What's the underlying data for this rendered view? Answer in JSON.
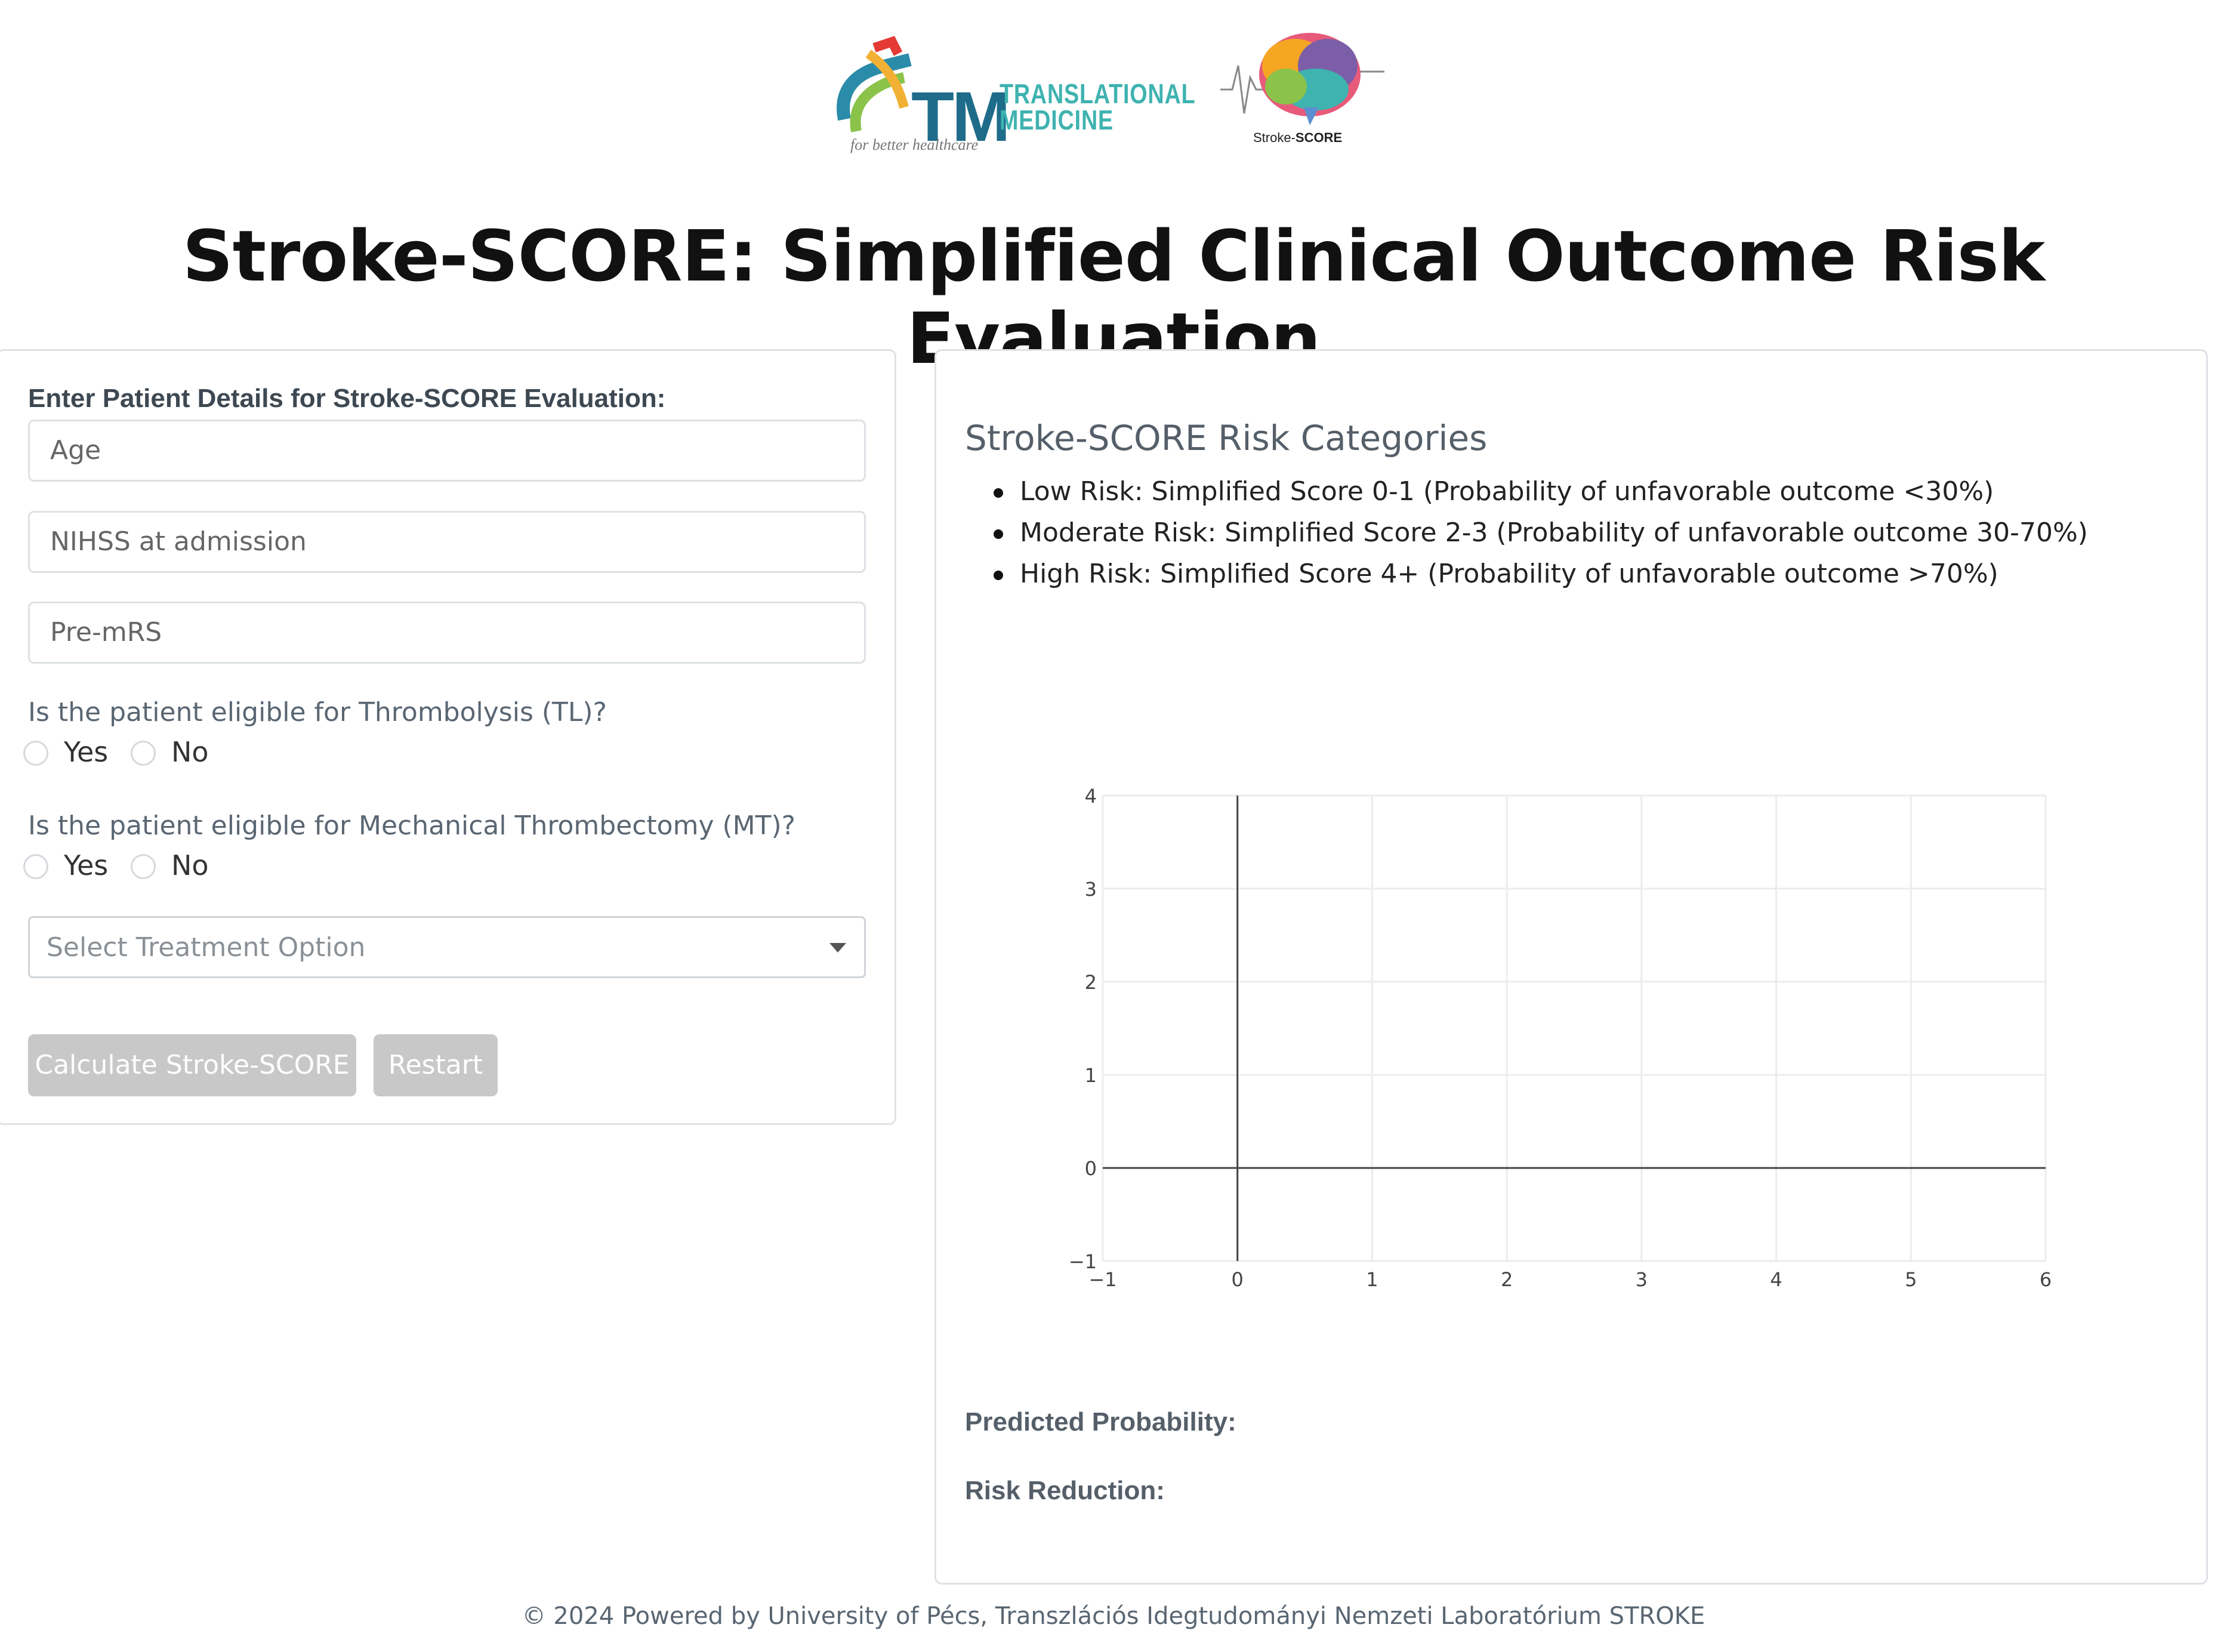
{
  "header": {
    "tm_logo": {
      "letters": "TM",
      "line1": "TRANSLATIONAL",
      "line2": "MEDICINE",
      "tagline": "for better healthcare"
    },
    "brain_logo": {
      "caption_prefix": "Stroke-",
      "caption_bold": "SCORE"
    },
    "title": "Stroke-SCORE: Simplified Clinical Outcome Risk Evaluation"
  },
  "form": {
    "heading": "Enter Patient Details for Stroke-SCORE Evaluation:",
    "age_placeholder": "Age",
    "nihss_placeholder": "NIHSS at admission",
    "premrs_placeholder": "Pre-mRS",
    "tl_question": "Is the patient eligible for Thrombolysis (TL)?",
    "mt_question": "Is the patient eligible for Mechanical Thrombectomy (MT)?",
    "yes_label": "Yes",
    "no_label": "No",
    "treatment_placeholder": "Select Treatment Option",
    "calculate_label": "Calculate Stroke-SCORE",
    "restart_label": "Restart"
  },
  "results": {
    "categories_title": "Stroke-SCORE Risk Categories",
    "categories": [
      "Low Risk: Simplified Score 0-1 (Probability of unfavorable outcome <30%)",
      "Moderate Risk: Simplified Score 2-3 (Probability of unfavorable outcome 30-70%)",
      "High Risk: Simplified Score 4+ (Probability of unfavorable outcome >70%)"
    ],
    "predicted_probability_label": "Predicted Probability:",
    "risk_reduction_label": "Risk Reduction:"
  },
  "chart_data": {
    "type": "scatter",
    "series": [],
    "xlim": [
      -1,
      6
    ],
    "ylim": [
      -1,
      4
    ],
    "x_ticks": [
      "−1",
      "0",
      "1",
      "2",
      "3",
      "4",
      "5",
      "6"
    ],
    "y_ticks": [
      "−1",
      "0",
      "1",
      "2",
      "3",
      "4"
    ],
    "grid": true
  },
  "footer": {
    "text": "© 2024 Powered by University of Pécs, Transzlációs Idegtudományi Nemzeti Laboratórium STROKE"
  }
}
